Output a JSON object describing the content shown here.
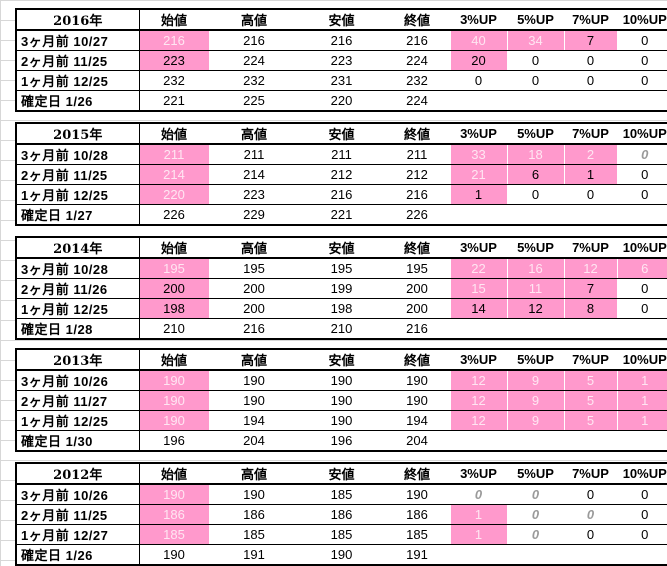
{
  "columns": [
    "始値",
    "高値",
    "安値",
    "終値",
    "3%UP",
    "5%UP",
    "7%UP",
    "10%UP"
  ],
  "blocks": [
    {
      "year": "2016年",
      "rows": [
        {
          "label": "3ヶ月前 10/27",
          "open": "216",
          "high": "216",
          "low": "216",
          "close": "216",
          "u3": "40",
          "u5": "34",
          "u7": "7",
          "u10": "0"
        },
        {
          "label": "2ヶ月前 11/25",
          "open": "223",
          "high": "224",
          "low": "223",
          "close": "224",
          "u3": "20",
          "u5": "0",
          "u7": "0",
          "u10": "0"
        },
        {
          "label": "1ヶ月前 12/25",
          "open": "232",
          "high": "232",
          "low": "231",
          "close": "232",
          "u3": "0",
          "u5": "0",
          "u7": "0",
          "u10": "0"
        },
        {
          "label": "確定日 1/26",
          "open": "221",
          "high": "225",
          "low": "220",
          "close": "224"
        }
      ]
    },
    {
      "year": "2015年",
      "rows": [
        {
          "label": "3ヶ月前 10/28",
          "open": "211",
          "high": "211",
          "low": "211",
          "close": "211",
          "u3": "33",
          "u5": "18",
          "u7": "2",
          "u10": "0"
        },
        {
          "label": "2ヶ月前 11/25",
          "open": "214",
          "high": "214",
          "low": "212",
          "close": "212",
          "u3": "21",
          "u5": "6",
          "u7": "1",
          "u10": "0"
        },
        {
          "label": "1ヶ月前 12/25",
          "open": "220",
          "high": "223",
          "low": "216",
          "close": "216",
          "u3": "1",
          "u5": "0",
          "u7": "0",
          "u10": "0"
        },
        {
          "label": "確定日 1/27",
          "open": "226",
          "high": "229",
          "low": "221",
          "close": "226"
        }
      ]
    },
    {
      "year": "2014年",
      "rows": [
        {
          "label": "3ヶ月前 10/28",
          "open": "195",
          "high": "195",
          "low": "195",
          "close": "195",
          "u3": "22",
          "u5": "16",
          "u7": "12",
          "u10": "6"
        },
        {
          "label": "2ヶ月前 11/26",
          "open": "200",
          "high": "200",
          "low": "199",
          "close": "200",
          "u3": "15",
          "u5": "11",
          "u7": "7",
          "u10": "0"
        },
        {
          "label": "1ヶ月前 12/25",
          "open": "198",
          "high": "200",
          "low": "198",
          "close": "200",
          "u3": "14",
          "u5": "12",
          "u7": "8",
          "u10": "0"
        },
        {
          "label": "確定日 1/28",
          "open": "210",
          "high": "216",
          "low": "210",
          "close": "216"
        }
      ]
    },
    {
      "year": "2013年",
      "rows": [
        {
          "label": "3ヶ月前 10/26",
          "open": "190",
          "high": "190",
          "low": "190",
          "close": "190",
          "u3": "12",
          "u5": "9",
          "u7": "5",
          "u10": "1"
        },
        {
          "label": "2ヶ月前 11/27",
          "open": "190",
          "high": "190",
          "low": "190",
          "close": "190",
          "u3": "12",
          "u5": "9",
          "u7": "5",
          "u10": "1"
        },
        {
          "label": "1ヶ月前 12/25",
          "open": "190",
          "high": "194",
          "low": "190",
          "close": "194",
          "u3": "12",
          "u5": "9",
          "u7": "5",
          "u10": "1"
        },
        {
          "label": "確定日 1/30",
          "open": "196",
          "high": "204",
          "low": "196",
          "close": "204"
        }
      ]
    },
    {
      "year": "2012年",
      "rows": [
        {
          "label": "3ヶ月前 10/26",
          "open": "190",
          "high": "190",
          "low": "185",
          "close": "190",
          "u3": "0",
          "u5": "0",
          "u7": "0",
          "u10": "0"
        },
        {
          "label": "2ヶ月前 11/25",
          "open": "186",
          "high": "186",
          "low": "186",
          "close": "186",
          "u3": "1",
          "u5": "0",
          "u7": "0",
          "u10": "0"
        },
        {
          "label": "1ヶ月前 12/27",
          "open": "185",
          "high": "185",
          "low": "185",
          "close": "185",
          "u3": "1",
          "u5": "0",
          "u7": "0",
          "u10": "0"
        },
        {
          "label": "確定日 1/26",
          "open": "190",
          "high": "191",
          "low": "190",
          "close": "191"
        }
      ]
    }
  ],
  "colors": {
    "highlight": "#ff99cc",
    "faint_text": "#ffe6f2",
    "zero_gray": "#9a9a9a",
    "grid": "#d7d7d7"
  }
}
